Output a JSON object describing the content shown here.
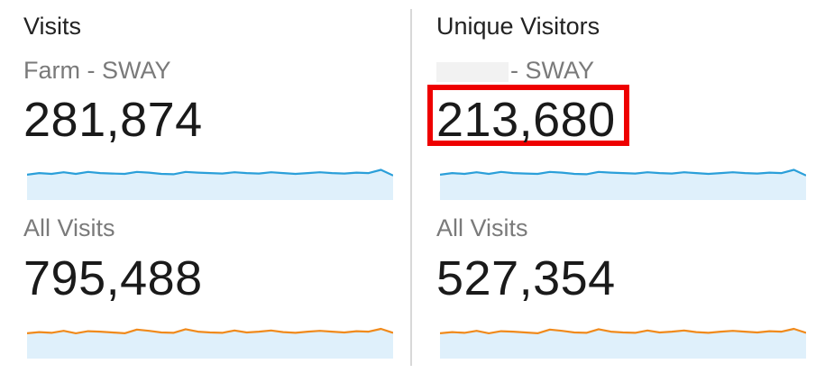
{
  "colors": {
    "blue_line": "#2b9fd9",
    "blue_fill": "#dff0fb",
    "orange_line": "#f08a1c",
    "highlight": "#ee0000",
    "divider": "#d8d8d8"
  },
  "left": {
    "title": "Visits",
    "segment1": {
      "label": "Farm - SWAY",
      "value": "281,874"
    },
    "segment2": {
      "label": "All Visits",
      "value": "795,488"
    }
  },
  "right": {
    "title": "Unique Visitors",
    "segment1": {
      "label": "- SWAY",
      "label_redacted_prefix": true,
      "value": "213,680",
      "highlighted": true
    },
    "segment2": {
      "label": "All Visits",
      "value": "527,354"
    }
  },
  "sparklines": {
    "blue": [
      0.45,
      0.55,
      0.5,
      0.6,
      0.5,
      0.62,
      0.55,
      0.52,
      0.5,
      0.62,
      0.58,
      0.5,
      0.48,
      0.62,
      0.58,
      0.55,
      0.52,
      0.6,
      0.55,
      0.52,
      0.6,
      0.55,
      0.5,
      0.55,
      0.6,
      0.55,
      0.52,
      0.58,
      0.55,
      0.75,
      0.4
    ],
    "orange": [
      0.45,
      0.52,
      0.48,
      0.6,
      0.45,
      0.58,
      0.55,
      0.5,
      0.45,
      0.68,
      0.6,
      0.5,
      0.48,
      0.7,
      0.55,
      0.5,
      0.48,
      0.62,
      0.5,
      0.55,
      0.62,
      0.52,
      0.48,
      0.55,
      0.6,
      0.55,
      0.5,
      0.58,
      0.55,
      0.72,
      0.48
    ]
  }
}
